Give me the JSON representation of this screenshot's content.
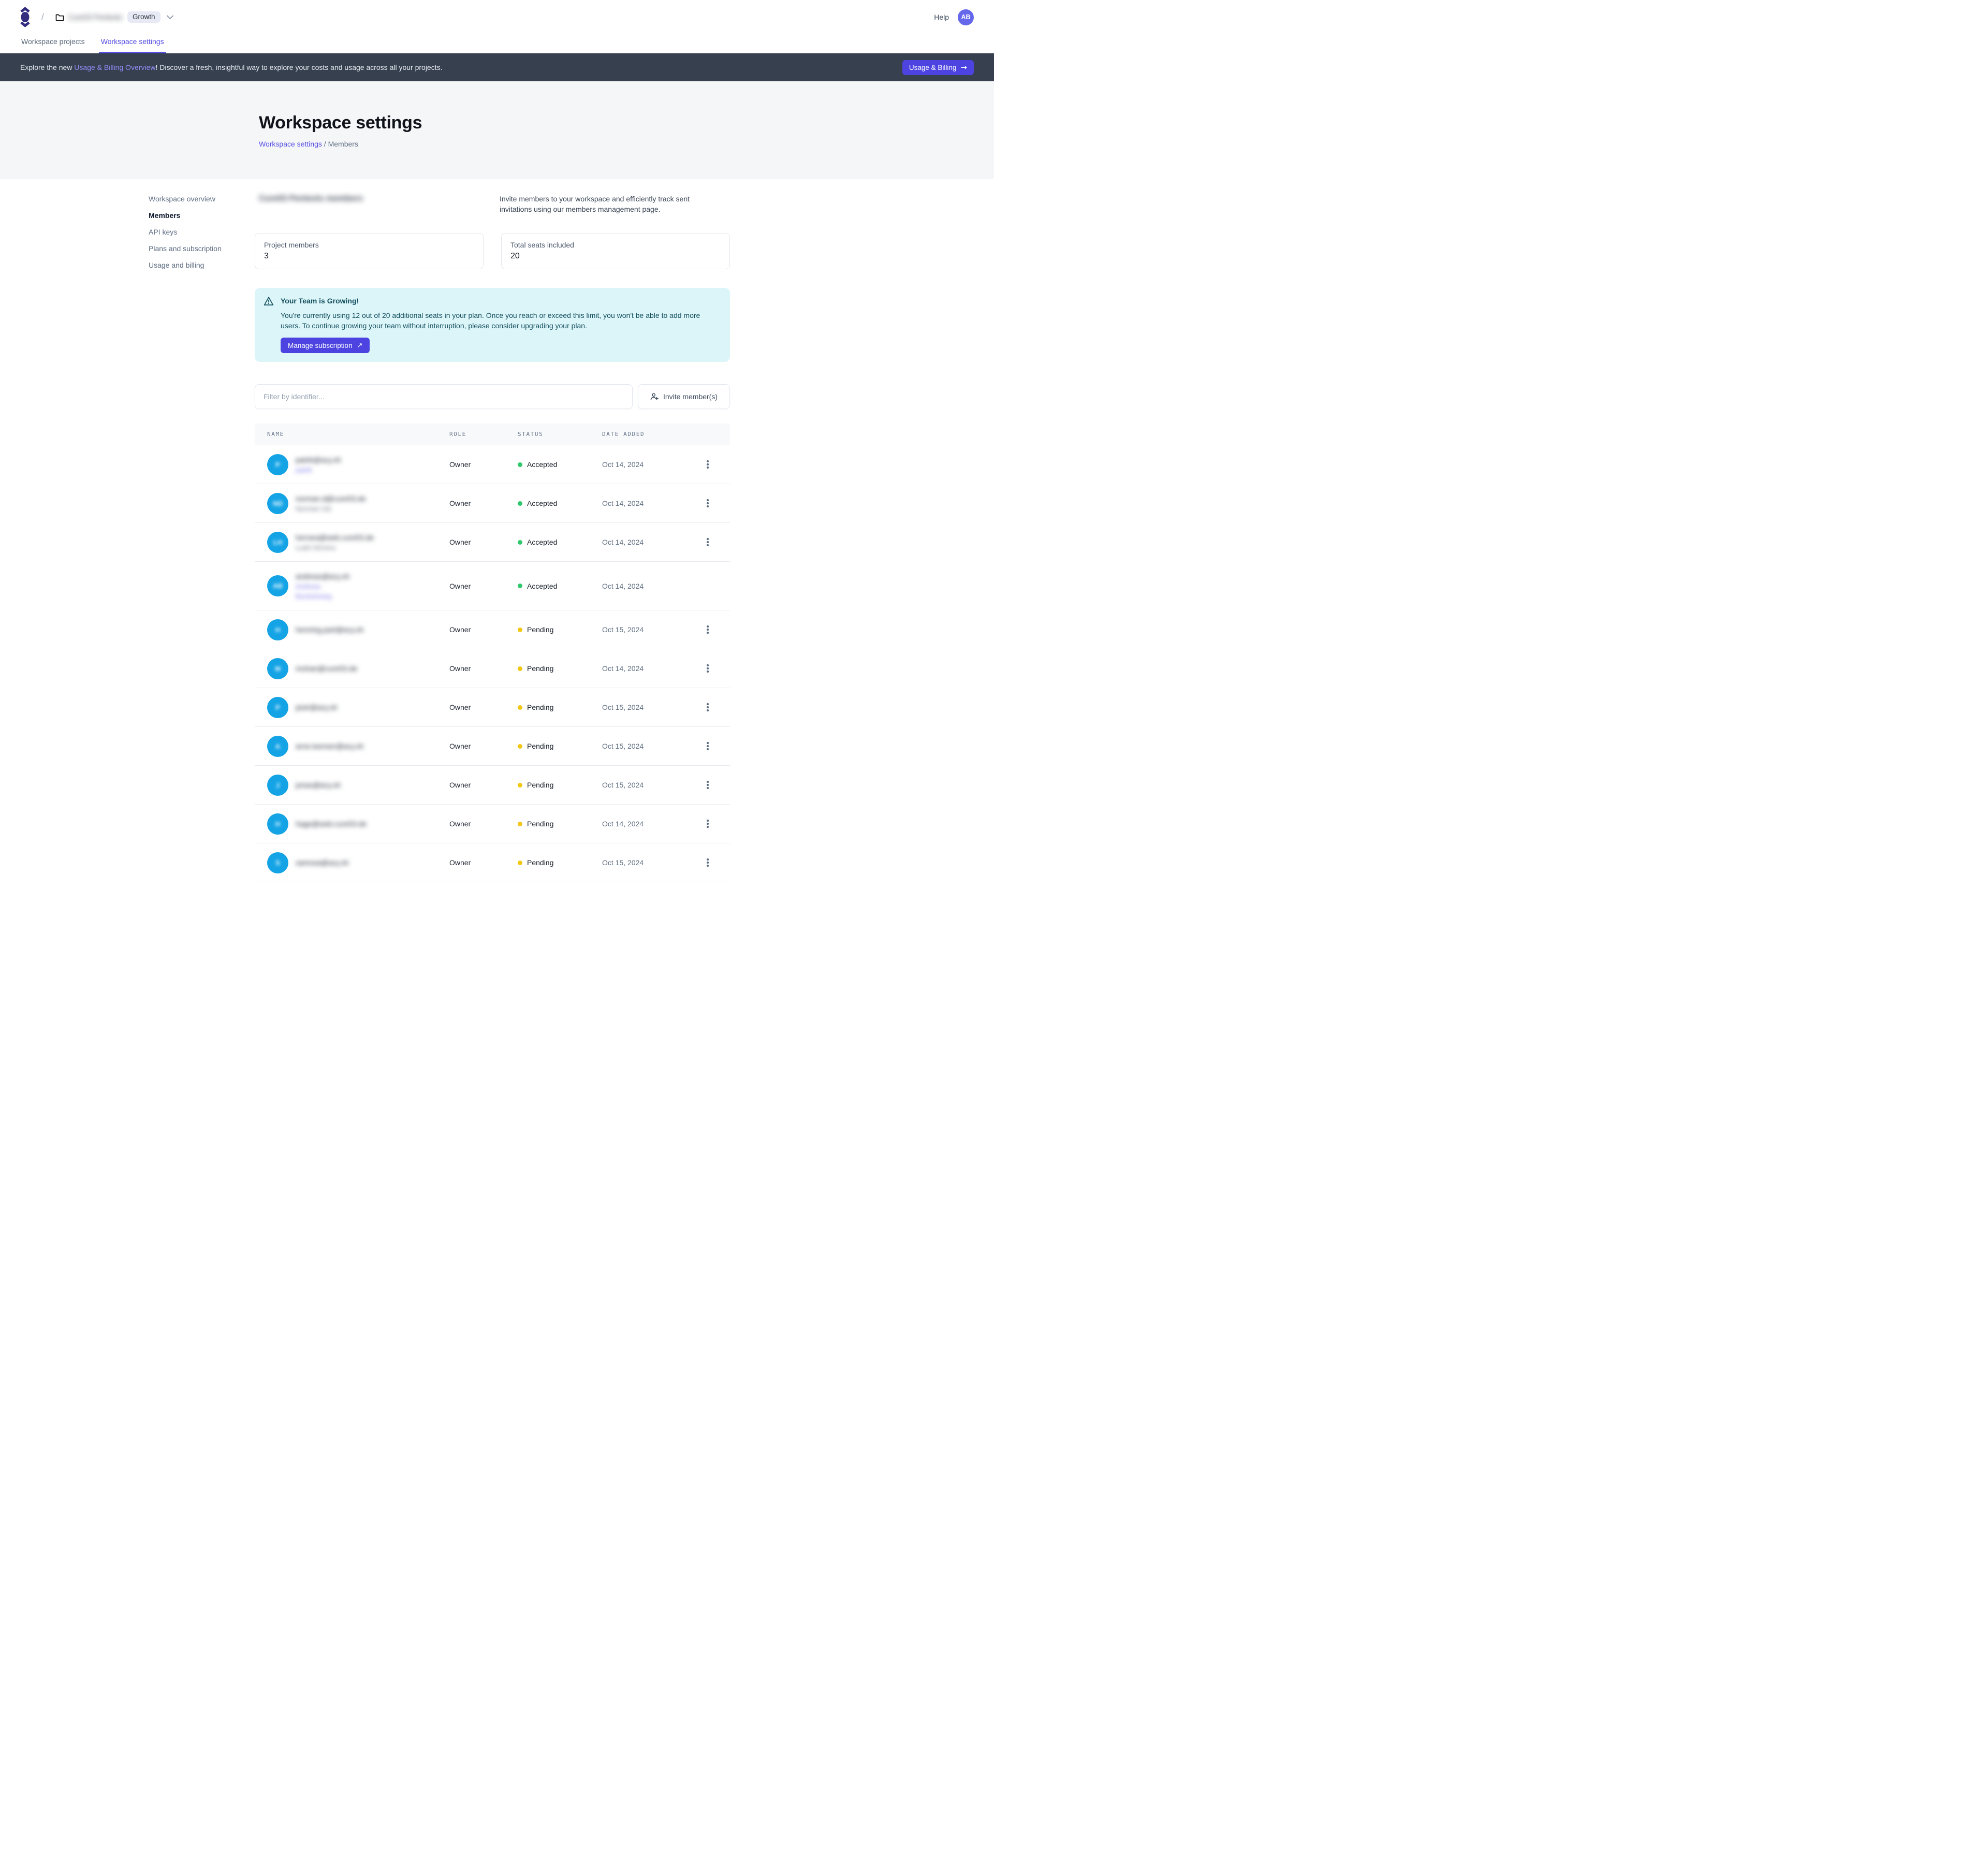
{
  "topbar": {
    "breadcrumb": {
      "separator": "/",
      "workspace_name_redacted": "Cure53 Pentests",
      "plan_badge": "Growth"
    },
    "help_label": "Help",
    "avatar_initials": "AB",
    "tabs": [
      {
        "label": "Workspace projects",
        "active": false
      },
      {
        "label": "Workspace settings",
        "active": true
      }
    ]
  },
  "banner": {
    "text_prefix": "Explore the new ",
    "link_text": "Usage & Billing Overview",
    "text_suffix": "! Discover a fresh, insightful way to explore your costs and usage across all your projects.",
    "button_label": "Usage & Billing",
    "button_arrow": "→"
  },
  "hero": {
    "title": "Workspace settings",
    "breadcrumb_link": "Workspace settings",
    "breadcrumb_separator": " / ",
    "breadcrumb_current": "Members"
  },
  "sidebar": {
    "items": [
      {
        "label": "Workspace overview",
        "active": false
      },
      {
        "label": "Members",
        "active": true
      },
      {
        "label": "API keys",
        "active": false
      },
      {
        "label": "Plans and subscription",
        "active": false
      },
      {
        "label": "Usage and billing",
        "active": false
      }
    ]
  },
  "members_section": {
    "heading_redacted": "Cure53 Pentests members",
    "intro": "Invite members to your workspace and efficiently track sent invitations using our members management page.",
    "stats": [
      {
        "label": "Project members",
        "value": "3"
      },
      {
        "label": "Total seats included",
        "value": "20"
      }
    ],
    "alert": {
      "title": "Your Team is Growing!",
      "body": "You're currently using 12 out of 20 additional seats in your plan. Once you reach or exceed this limit, you won't be able to add more users. To continue growing your team without interruption, please consider upgrading your plan.",
      "button_label": "Manage subscription",
      "button_arrow": "↗"
    },
    "filter_placeholder": "Filter by identifier...",
    "invite_button_label": "Invite member(s)"
  },
  "table": {
    "columns": [
      "NAME",
      "ROLE",
      "STATUS",
      "DATE ADDED"
    ],
    "status_colors": {
      "Accepted": "#2dc96b",
      "Pending": "#f2c713"
    },
    "avatar_color": "#14a4e6",
    "rows": [
      {
        "redacted": true,
        "initials": "P",
        "email": "patrik@acy.sh",
        "name": "patrik",
        "name2": null,
        "name_variant": "link",
        "role": "Owner",
        "status": "Accepted",
        "date": "Oct 14, 2024",
        "has_menu": true,
        "tall": false
      },
      {
        "redacted": true,
        "initials": "ND",
        "email": "norman.d@cure53.de",
        "name": "Norman Utz",
        "name2": null,
        "name_variant": "muted",
        "role": "Owner",
        "status": "Accepted",
        "date": "Oct 14, 2024",
        "has_menu": true,
        "tall": false
      },
      {
        "redacted": true,
        "initials": "LH",
        "email": "herrara@web.cure53.de",
        "name": "Luah Herrera",
        "name2": null,
        "name_variant": "muted",
        "role": "Owner",
        "status": "Accepted",
        "date": "Oct 14, 2024",
        "has_menu": true,
        "tall": false
      },
      {
        "redacted": true,
        "initials": "AB",
        "email": "andreas@acy.sh",
        "name": "Andreas",
        "name2": "Buckelsweg",
        "name_variant": "link",
        "role": "Owner",
        "status": "Accepted",
        "date": "Oct 14, 2024",
        "has_menu": false,
        "tall": true
      },
      {
        "redacted": true,
        "initials": "H",
        "email": "henning.part@acy.sh",
        "name": null,
        "name2": null,
        "name_variant": null,
        "role": "Owner",
        "status": "Pending",
        "date": "Oct 15, 2024",
        "has_menu": true,
        "tall": false
      },
      {
        "redacted": true,
        "initials": "M",
        "email": "mohan@cure53.de",
        "name": null,
        "name2": null,
        "name_variant": null,
        "role": "Owner",
        "status": "Pending",
        "date": "Oct 14, 2024",
        "has_menu": true,
        "tall": false
      },
      {
        "redacted": true,
        "initials": "P",
        "email": "piotr@acy.sh",
        "name": null,
        "name2": null,
        "name_variant": null,
        "role": "Owner",
        "status": "Pending",
        "date": "Oct 15, 2024",
        "has_menu": true,
        "tall": false
      },
      {
        "redacted": true,
        "initials": "A",
        "email": "arne.loenser@acy.sh",
        "name": null,
        "name2": null,
        "name_variant": null,
        "role": "Owner",
        "status": "Pending",
        "date": "Oct 15, 2024",
        "has_menu": true,
        "tall": false
      },
      {
        "redacted": true,
        "initials": "J",
        "email": "jonas@acy.sh",
        "name": null,
        "name2": null,
        "name_variant": null,
        "role": "Owner",
        "status": "Pending",
        "date": "Oct 15, 2024",
        "has_menu": true,
        "tall": false
      },
      {
        "redacted": true,
        "initials": "H",
        "email": "hage@web.cure53.de",
        "name": null,
        "name2": null,
        "name_variant": null,
        "role": "Owner",
        "status": "Pending",
        "date": "Oct 14, 2024",
        "has_menu": true,
        "tall": false
      },
      {
        "redacted": true,
        "initials": "S",
        "email": "samosa@acy.sh",
        "name": null,
        "name2": null,
        "name_variant": null,
        "role": "Owner",
        "status": "Pending",
        "date": "Oct 15, 2024",
        "has_menu": true,
        "tall": false
      }
    ]
  }
}
